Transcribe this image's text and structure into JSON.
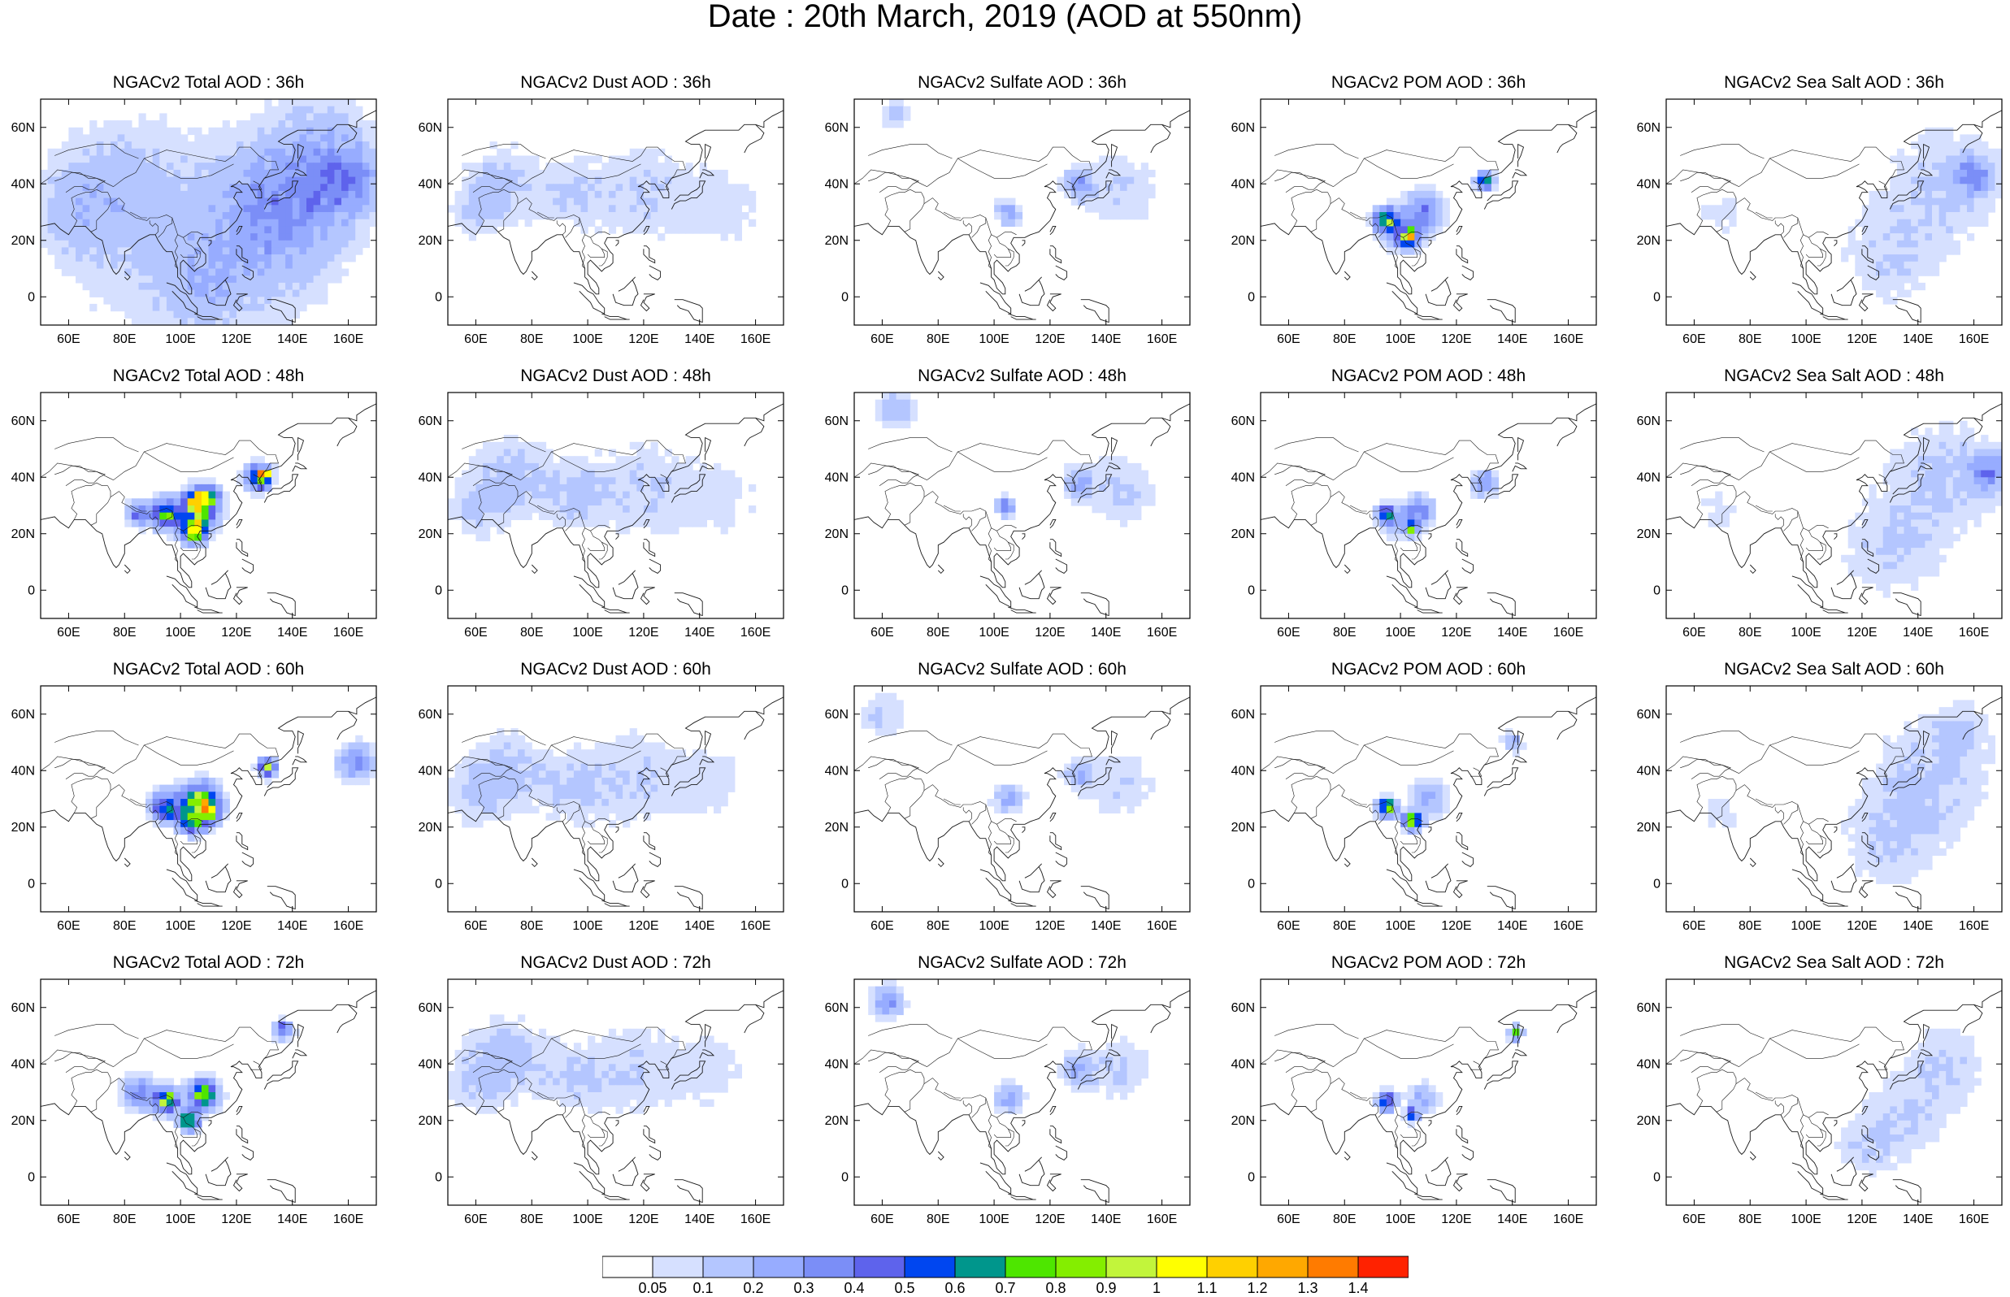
{
  "title": "Date : 20th March, 2019 (AOD at 550nm)",
  "lat_labels": [
    {
      "lat": 60,
      "text": "60N"
    },
    {
      "lat": 40,
      "text": "40N"
    },
    {
      "lat": 20,
      "text": "20N"
    },
    {
      "lat": 0,
      "text": "0"
    }
  ],
  "lon_labels": [
    {
      "lon": 60,
      "text": "60E"
    },
    {
      "lon": 80,
      "text": "80E"
    },
    {
      "lon": 100,
      "text": "100E"
    },
    {
      "lon": 120,
      "text": "120E"
    },
    {
      "lon": 140,
      "text": "140E"
    },
    {
      "lon": 160,
      "text": "160E"
    }
  ],
  "map_extent": {
    "lon_min": 50,
    "lon_max": 170,
    "lat_min": -10,
    "lat_max": 70
  },
  "colorbar": {
    "colors": [
      "#ffffff",
      "#d6e0ff",
      "#b4c6ff",
      "#97acff",
      "#7b8ef7",
      "#5e63ec",
      "#0046f0",
      "#00968c",
      "#4ee600",
      "#84ee00",
      "#c2f53b",
      "#ffff00",
      "#ffd000",
      "#ffa800",
      "#ff7b00",
      "#ff2200"
    ],
    "labels": [
      "0.05",
      "0.1",
      "0.2",
      "0.3",
      "0.4",
      "0.5",
      "0.6",
      "0.7",
      "0.8",
      "0.9",
      "1",
      "1.1",
      "1.2",
      "1.3",
      "1.4"
    ]
  },
  "panels": [
    {
      "title": "NGACv2 Total AOD : 36h",
      "species": "total"
    },
    {
      "title": "NGACv2 Dust AOD : 36h",
      "species": "dust"
    },
    {
      "title": "NGACv2 Sulfate AOD : 36h",
      "species": "sulfate"
    },
    {
      "title": "NGACv2 POM AOD : 36h",
      "species": "pom"
    },
    {
      "title": "NGACv2 Sea Salt AOD : 36h",
      "species": "seasalt"
    },
    {
      "title": "NGACv2 Total AOD : 48h",
      "species": "total"
    },
    {
      "title": "NGACv2 Dust AOD : 48h",
      "species": "dust"
    },
    {
      "title": "NGACv2 Sulfate AOD : 48h",
      "species": "sulfate"
    },
    {
      "title": "NGACv2 POM AOD : 48h",
      "species": "pom"
    },
    {
      "title": "NGACv2 Sea Salt AOD : 48h",
      "species": "seasalt"
    },
    {
      "title": "NGACv2 Total AOD : 60h",
      "species": "total"
    },
    {
      "title": "NGACv2 Dust AOD : 60h",
      "species": "dust"
    },
    {
      "title": "NGACv2 Sulfate AOD : 60h",
      "species": "sulfate"
    },
    {
      "title": "NGACv2 POM AOD : 60h",
      "species": "pom"
    },
    {
      "title": "NGACv2 Sea Salt AOD : 60h",
      "species": "seasalt"
    },
    {
      "title": "NGACv2 Total AOD : 72h",
      "species": "total"
    },
    {
      "title": "NGACv2 Dust AOD : 72h",
      "species": "dust"
    },
    {
      "title": "NGACv2 Sulfate AOD : 72h",
      "species": "sulfate"
    },
    {
      "title": "NGACv2 POM AOD : 72h",
      "species": "pom"
    },
    {
      "title": "NGACv2 Sea Salt  AOD : 72h",
      "species": "seasalt"
    }
  ]
}
